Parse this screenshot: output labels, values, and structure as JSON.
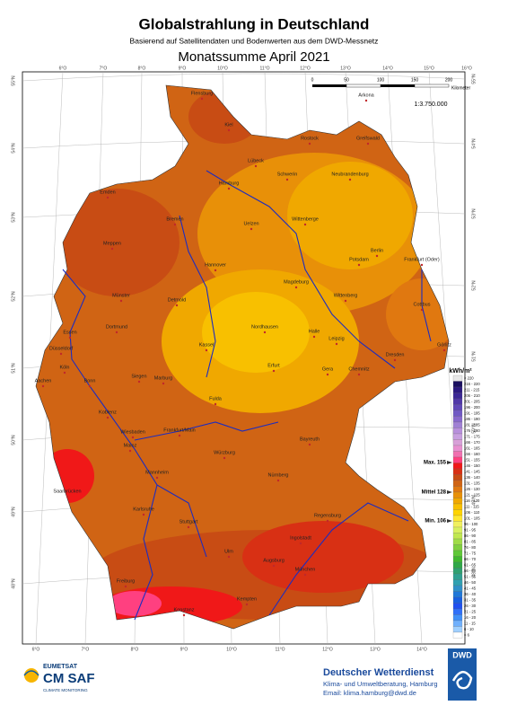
{
  "header": {
    "title": "Globalstrahlung in Deutschland",
    "subtitle": "Basierend auf Satellitendaten und Bodenwerten aus dem DWD-Messnetz",
    "period": "Monatssumme April 2021"
  },
  "map": {
    "lon_labels_top": [
      "6°O",
      "7°O",
      "8°O",
      "9°O",
      "10°O",
      "11°O",
      "12°O",
      "13°O",
      "14°O",
      "15°O",
      "16°O"
    ],
    "lon_labels_bottom": [
      "6°O",
      "7°O",
      "8°O",
      "9°O",
      "10°O",
      "11°O",
      "12°O",
      "13°O",
      "14°O"
    ],
    "lat_labels": [
      "55°N",
      "54°N",
      "53°N",
      "52°N",
      "51°N",
      "50°N",
      "49°N",
      "48°N"
    ],
    "scale": {
      "ticks": [
        "0",
        "50",
        "100",
        "150",
        "200"
      ],
      "unit": "Kilometer",
      "ratio": "1:3.750.000"
    },
    "cities": [
      "Flensburg",
      "Kiel",
      "Arkona",
      "Rostock",
      "Greifswald",
      "Lübeck",
      "Schwerin",
      "Neubrandenburg",
      "Hamburg",
      "Emden",
      "Bremen",
      "Uelzen",
      "Wittenberge",
      "Berlin",
      "Potsdam",
      "Frankfurt (Oder)",
      "Meppen",
      "Hannover",
      "Magdeburg",
      "Münster",
      "Detmold",
      "Wittenberg",
      "Cottbus",
      "Dortmund",
      "Nordhausen",
      "Halle",
      "Essen",
      "Düsseldorf",
      "Kassel",
      "Leipzig",
      "Görlitz",
      "Dresden",
      "Köln",
      "Erfurt",
      "Gera",
      "Chemnitz",
      "Aachen",
      "Siegen",
      "Marburg",
      "Bonn",
      "Fulda",
      "Koblenz",
      "Wiesbaden",
      "Frankfurt/Main",
      "Bayreuth",
      "Mainz",
      "Würzburg",
      "Mannheim",
      "Nürnberg",
      "Saarbrücken",
      "Regensburg",
      "Karlsruhe",
      "Ingolstadt",
      "Stuttgart",
      "Ulm",
      "Augsburg",
      "München",
      "Freiburg",
      "Kempten",
      "Konstanz"
    ]
  },
  "legend": {
    "title": "kWh/m²",
    "classes": [
      {
        "label": "> 220",
        "color": "#e8e8e8"
      },
      {
        "label": "216 - 220",
        "color": "#1a1060"
      },
      {
        "label": "211 - 215",
        "color": "#2c1a80"
      },
      {
        "label": "206 - 210",
        "color": "#3c2896"
      },
      {
        "label": "201 - 205",
        "color": "#5038a8"
      },
      {
        "label": "196 - 200",
        "color": "#6048b8"
      },
      {
        "label": "191 - 195",
        "color": "#7058c4"
      },
      {
        "label": "186 - 190",
        "color": "#8868cc"
      },
      {
        "label": "181 - 185",
        "color": "#a080d4"
      },
      {
        "label": "176 - 180",
        "color": "#b890dc"
      },
      {
        "label": "171 - 175",
        "color": "#c8a0e0"
      },
      {
        "label": "166 - 170",
        "color": "#d8a0d8"
      },
      {
        "label": "161 - 165",
        "color": "#e890d0"
      },
      {
        "label": "156 - 160",
        "color": "#f070b0"
      },
      {
        "label": "151 - 155",
        "color": "#ff4080"
      },
      {
        "label": "146 - 150",
        "color": "#f01818"
      },
      {
        "label": "141 - 145",
        "color": "#d83014"
      },
      {
        "label": "136 - 140",
        "color": "#c84c14"
      },
      {
        "label": "131 - 135",
        "color": "#d06414"
      },
      {
        "label": "126 - 130",
        "color": "#e07810"
      },
      {
        "label": "121 - 125",
        "color": "#e89008"
      },
      {
        "label": "116 - 120",
        "color": "#f0a800"
      },
      {
        "label": "111 - 115",
        "color": "#f8c000"
      },
      {
        "label": "106 - 110",
        "color": "#ffd400"
      },
      {
        "label": "101 - 105",
        "color": "#ffe830"
      },
      {
        "label": "96 - 100",
        "color": "#f0f060"
      },
      {
        "label": "91 - 95",
        "color": "#d8f060"
      },
      {
        "label": "86 - 90",
        "color": "#c0e850"
      },
      {
        "label": "81 - 85",
        "color": "#a0dc48"
      },
      {
        "label": "76 - 80",
        "color": "#80d040"
      },
      {
        "label": "71 - 75",
        "color": "#60c838"
      },
      {
        "label": "66 - 70",
        "color": "#40b830"
      },
      {
        "label": "61 - 65",
        "color": "#30a848"
      },
      {
        "label": "56 - 60",
        "color": "#30a070"
      },
      {
        "label": "51 - 55",
        "color": "#30a090"
      },
      {
        "label": "46 - 50",
        "color": "#30a0b0"
      },
      {
        "label": "41 - 45",
        "color": "#3090c8"
      },
      {
        "label": "36 - 40",
        "color": "#2078d8"
      },
      {
        "label": "31 - 35",
        "color": "#1860e0"
      },
      {
        "label": "26 - 30",
        "color": "#2050f0"
      },
      {
        "label": "21 - 25",
        "color": "#3070f8"
      },
      {
        "label": "16 - 20",
        "color": "#4090f8"
      },
      {
        "label": "11 - 15",
        "color": "#70b0fc"
      },
      {
        "label": "6 - 10",
        "color": "#a0d0ff"
      },
      {
        "label": "< 6",
        "color": "#ffffff"
      }
    ],
    "markers": [
      "Max. 155",
      "Mittel 128",
      "Min. 106"
    ]
  },
  "footer": {
    "eumetsat": "EUMETSAT",
    "cmsaf": "CM SAF",
    "cm_sub": "CLIMATE MONITORING",
    "dwd_name": "Deutscher Wetterdienst",
    "dwd_dept": "Klima- und Umweltberatung, Hamburg",
    "dwd_email": "Email: klima.hamburg@dwd.de",
    "dwd_logo": "DWD"
  }
}
